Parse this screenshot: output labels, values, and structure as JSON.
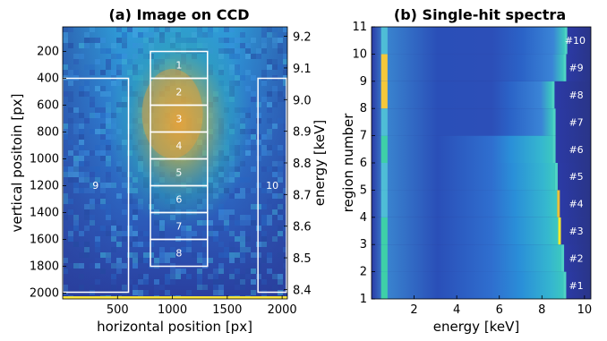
{
  "chart_data": [
    {
      "type": "heatmap",
      "title": "(a) Image on CCD",
      "xlabel": "horizontal position [px]",
      "ylabel": "vertical positoin [px]",
      "y2label": "energy [keV]",
      "xlim": [
        0,
        2048
      ],
      "ylim": [
        2048,
        0
      ],
      "xticks": [
        500,
        1000,
        1500,
        2000
      ],
      "yticks": [
        200,
        400,
        600,
        800,
        1000,
        1200,
        1400,
        1600,
        1800,
        2000
      ],
      "y2ticks": [
        9.2,
        9.1,
        9.0,
        8.9,
        8.8,
        8.7,
        8.6,
        8.5,
        8.4
      ],
      "y2lim": [
        9.23,
        8.37
      ],
      "regions": [
        {
          "label": "1",
          "x": [
            800,
            1320
          ],
          "y": [
            0,
            200
          ]
        },
        {
          "label": "2",
          "x": [
            800,
            1320
          ],
          "y": [
            200,
            400
          ]
        },
        {
          "label": "3",
          "x": [
            800,
            1320
          ],
          "y": [
            400,
            600
          ]
        },
        {
          "label": "4",
          "x": [
            800,
            1320
          ],
          "y": [
            600,
            800
          ]
        },
        {
          "label": "5",
          "x": [
            800,
            1320
          ],
          "y": [
            800,
            1000
          ]
        },
        {
          "label": "6",
          "x": [
            800,
            1320
          ],
          "y": [
            1000,
            1200
          ]
        },
        {
          "label": "7",
          "x": [
            800,
            1320
          ],
          "y": [
            1200,
            1400
          ]
        },
        {
          "label": "8",
          "x": [
            800,
            1320
          ],
          "y": [
            1400,
            1600
          ]
        },
        {
          "label": "9",
          "x": [
            0,
            600
          ],
          "y": [
            400,
            2020
          ]
        },
        {
          "label": "10",
          "x": [
            1780,
            2040
          ],
          "y": [
            400,
            2020
          ]
        }
      ]
    },
    {
      "type": "heatmap",
      "title": "(b) Single-hit spectra",
      "xlabel": "energy [keV]",
      "ylabel": "region number",
      "xlim": [
        0,
        10.3
      ],
      "ylim": [
        1,
        11
      ],
      "xticks": [
        2,
        4,
        6,
        8,
        10
      ],
      "yticks": [
        1,
        2,
        3,
        4,
        5,
        6,
        7,
        8,
        9,
        10,
        11
      ],
      "rows": [
        {
          "region": 1,
          "label": "#1",
          "edge_keV": 9.1
        },
        {
          "region": 2,
          "label": "#2",
          "edge_keV": 9.0
        },
        {
          "region": 3,
          "label": "#3",
          "edge_keV": 8.85
        },
        {
          "region": 4,
          "label": "#4",
          "edge_keV": 8.8
        },
        {
          "region": 5,
          "label": "#5",
          "edge_keV": 8.7
        },
        {
          "region": 6,
          "label": "#6",
          "edge_keV": 8.6
        },
        {
          "region": 7,
          "label": "#7",
          "edge_keV": 8.6
        },
        {
          "region": 8,
          "label": "#8",
          "edge_keV": 8.55
        },
        {
          "region": 9,
          "label": "#9",
          "edge_keV": 9.1
        },
        {
          "region": 10,
          "label": "#10",
          "edge_keV": 9.15
        }
      ]
    }
  ]
}
